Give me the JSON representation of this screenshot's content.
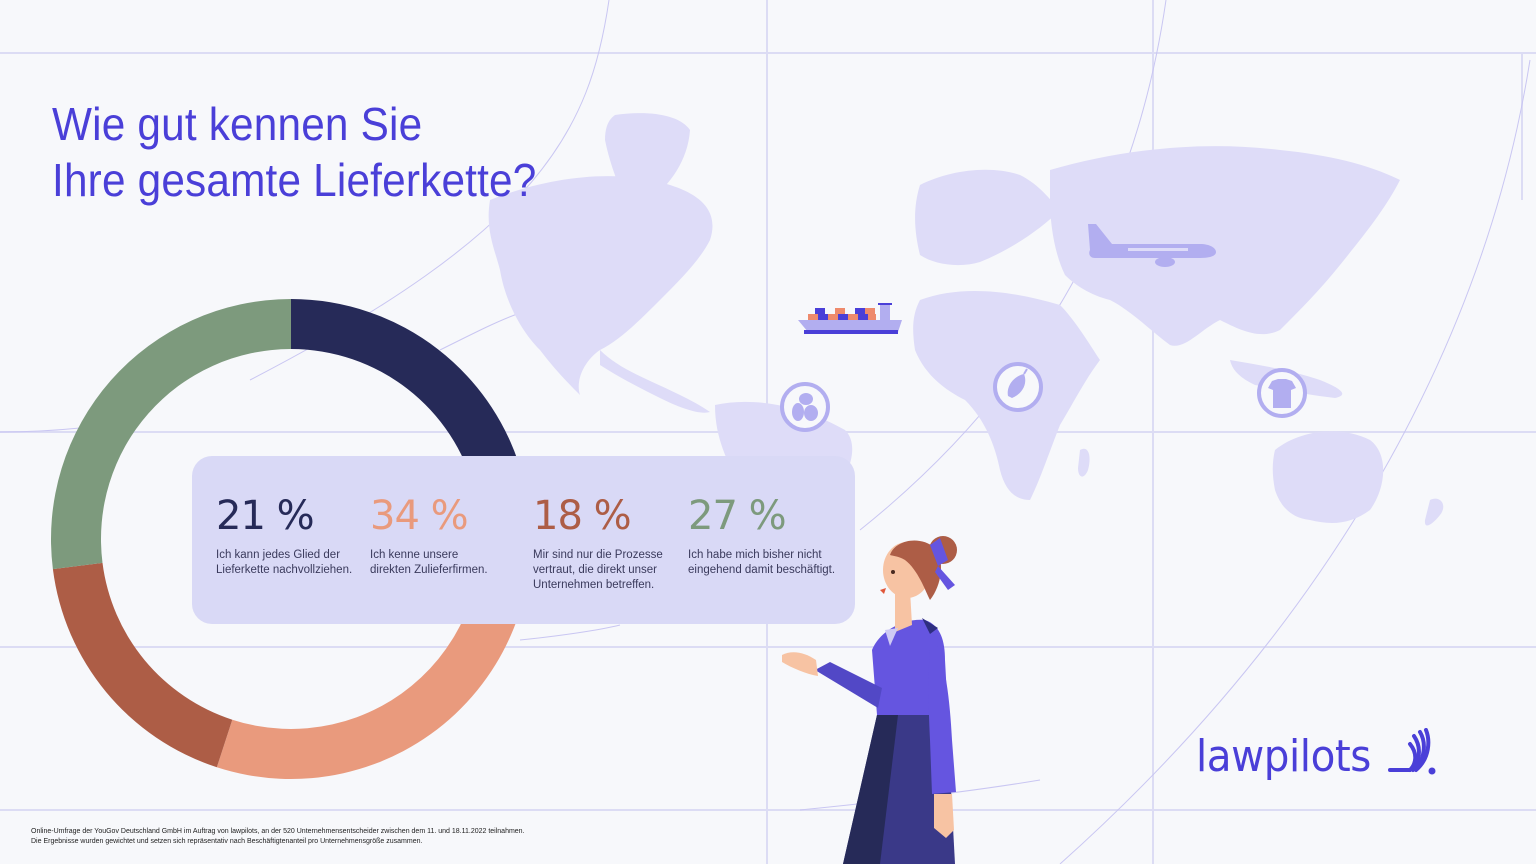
{
  "title": {
    "line1": "Wie gut kennen Sie",
    "line2": "Ihre gesamte Lieferkette?"
  },
  "chart_data": {
    "type": "pie",
    "subtype": "donut",
    "title": "Wie gut kennen Sie Ihre gesamte Lieferkette?",
    "categories": [
      "Ich kann jedes Glied der Lieferkette nachvollziehen.",
      "Ich kenne unsere direkten Zulieferfirmen.",
      "Mir sind nur die Prozesse vertraut, die direkt unser Unternehmen betreffen.",
      "Ich habe mich bisher nicht eingehend damit beschäftigt."
    ],
    "values": [
      21,
      34,
      18,
      27
    ],
    "unit": "%",
    "colors": [
      "#262a58",
      "#e99a7d",
      "#ad5d46",
      "#7d9a7d"
    ],
    "start_angle_deg": 0,
    "direction": "clockwise",
    "legend": "card-overlay-center"
  },
  "stats": [
    {
      "value": "21 %",
      "line1": "Ich kann jedes Glied der",
      "line2": "Lieferkette nachvollziehen.",
      "line3": "",
      "color": "#262a58"
    },
    {
      "value": "34 %",
      "line1": "Ich kenne unsere",
      "line2": "direkten Zulieferfirmen.",
      "line3": "",
      "color": "#e99a7d"
    },
    {
      "value": "18 %",
      "line1": "Mir sind nur die Prozesse",
      "line2": "vertraut, die direkt unser",
      "line3": "Unternehmen betreffen.",
      "color": "#ad5d46"
    },
    {
      "value": "27 %",
      "line1": "Ich habe mich bisher nicht",
      "line2": "eingehend damit beschäftigt.",
      "line3": "",
      "color": "#7d9a7d"
    }
  ],
  "footnote": {
    "line1": "Online-Umfrage der YouGov Deutschland GmbH im Auftrag von lawpilots, an der 520 Unternehmensentscheider zwischen dem 11. und 18.11.2022 teilnahmen.",
    "line2": "Die Ergebnisse wurden gewichtet und setzen sich repräsentativ nach Beschäftigtenanteil pro Unternehmensgröße zusammen."
  },
  "brand": {
    "name": "lawpilots",
    "color": "#4a3fd8"
  },
  "map_icons": [
    "cargo-ship-icon",
    "airplane-icon",
    "coffee-beans-icon",
    "cocoa-pod-icon",
    "t-shirt-icon"
  ]
}
